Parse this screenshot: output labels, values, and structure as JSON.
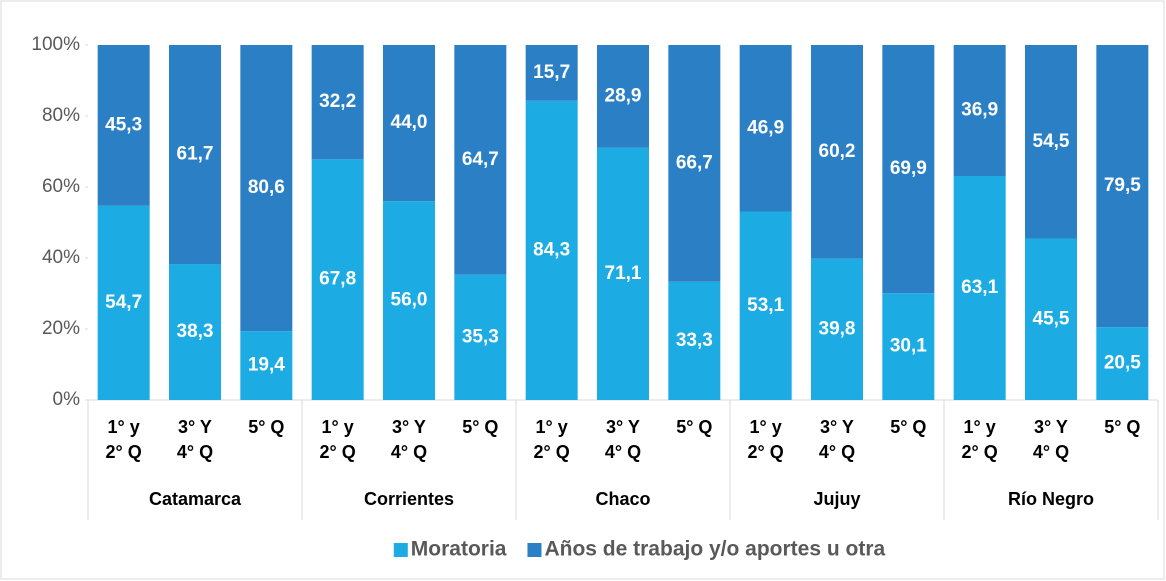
{
  "chart_data": {
    "type": "bar",
    "stacked": true,
    "groups": [
      {
        "name": "Catamarca",
        "categories": [
          [
            "1° y",
            "2° Q"
          ],
          [
            "3° Y",
            "4° Q"
          ],
          [
            "5° Q"
          ]
        ]
      },
      {
        "name": "Corrientes",
        "categories": [
          [
            "1° y",
            "2° Q"
          ],
          [
            "3° Y",
            "4° Q"
          ],
          [
            "5° Q"
          ]
        ]
      },
      {
        "name": "Chaco",
        "categories": [
          [
            "1° y",
            "2° Q"
          ],
          [
            "3° Y",
            "4° Q"
          ],
          [
            "5° Q"
          ]
        ]
      },
      {
        "name": "Jujuy",
        "categories": [
          [
            "1° y",
            "2° Q"
          ],
          [
            "3° Y",
            "4° Q"
          ],
          [
            "5° Q"
          ]
        ]
      },
      {
        "name": "Río Negro",
        "categories": [
          [
            "1° y",
            "2° Q"
          ],
          [
            "3° Y",
            "4° Q"
          ],
          [
            "5° Q"
          ]
        ]
      }
    ],
    "series": [
      {
        "name": "Moratoria",
        "color": "#1cace3",
        "values": [
          54.7,
          38.3,
          19.4,
          67.8,
          56.0,
          35.3,
          84.3,
          71.1,
          33.3,
          53.1,
          39.8,
          30.1,
          63.1,
          45.5,
          20.5
        ],
        "value_labels": [
          "54,7",
          "38,3",
          "19,4",
          "67,8",
          "56,0",
          "35,3",
          "84,3",
          "71,1",
          "33,3",
          "53,1",
          "39,8",
          "30,1",
          "63,1",
          "45,5",
          "20,5"
        ]
      },
      {
        "name": "Años de trabajo y/o aportes u otra",
        "color": "#2b80c5",
        "values": [
          45.3,
          61.7,
          80.6,
          32.2,
          44.0,
          64.7,
          15.7,
          28.9,
          66.7,
          46.9,
          60.2,
          69.9,
          36.9,
          54.5,
          79.5
        ],
        "value_labels": [
          "45,3",
          "61,7",
          "80,6",
          "32,2",
          "44,0",
          "64,7",
          "15,7",
          "28,9",
          "66,7",
          "46,9",
          "60,2",
          "69,9",
          "36,9",
          "54,5",
          "79,5"
        ]
      }
    ],
    "ylim": [
      0,
      100
    ],
    "yticks": [
      {
        "value": 0,
        "label": "0%"
      },
      {
        "value": 20,
        "label": "20%"
      },
      {
        "value": 40,
        "label": "40%"
      },
      {
        "value": 60,
        "label": "60%"
      },
      {
        "value": 80,
        "label": "80%"
      },
      {
        "value": 100,
        "label": "100%"
      }
    ],
    "legend": "bottom"
  }
}
